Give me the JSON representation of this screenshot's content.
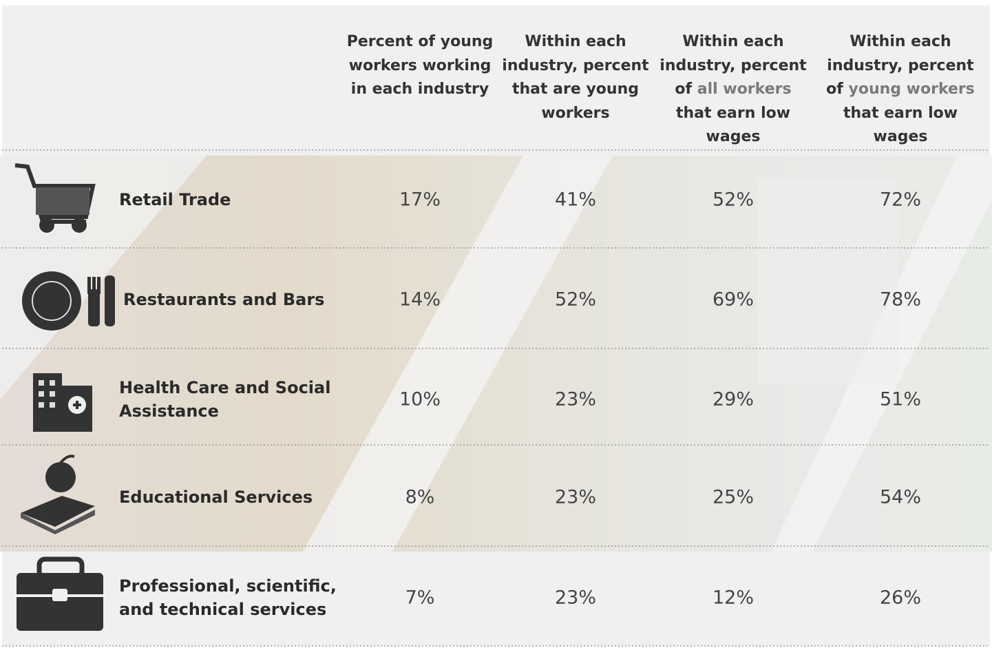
{
  "table": {
    "header": [
      {
        "text": "Percent of young workers working in each industry"
      },
      {
        "text": "Within each industry, percent that are young workers"
      },
      {
        "before": "Within each industry, percent of",
        "highlight": "all workers",
        "after": "that earn low wages"
      },
      {
        "before": "Within each industry, percent of",
        "highlight": "young workers",
        "after": "that earn low wages"
      }
    ],
    "rows": [
      {
        "label": "Retail Trade",
        "values": [
          "17%",
          "41%",
          "52%",
          "72%"
        ]
      },
      {
        "label": "Restaurants and Bars",
        "values": [
          "14%",
          "52%",
          "69%",
          "78%"
        ]
      },
      {
        "label": "Health Care and Social Assistance",
        "values": [
          "10%",
          "23%",
          "29%",
          "51%"
        ]
      },
      {
        "label": "Educational Services",
        "values": [
          "8%",
          "23%",
          "25%",
          "54%"
        ]
      },
      {
        "label": "Professional, scientific, and technical services",
        "values": [
          "7%",
          "23%",
          "12%",
          "26%"
        ]
      }
    ]
  }
}
